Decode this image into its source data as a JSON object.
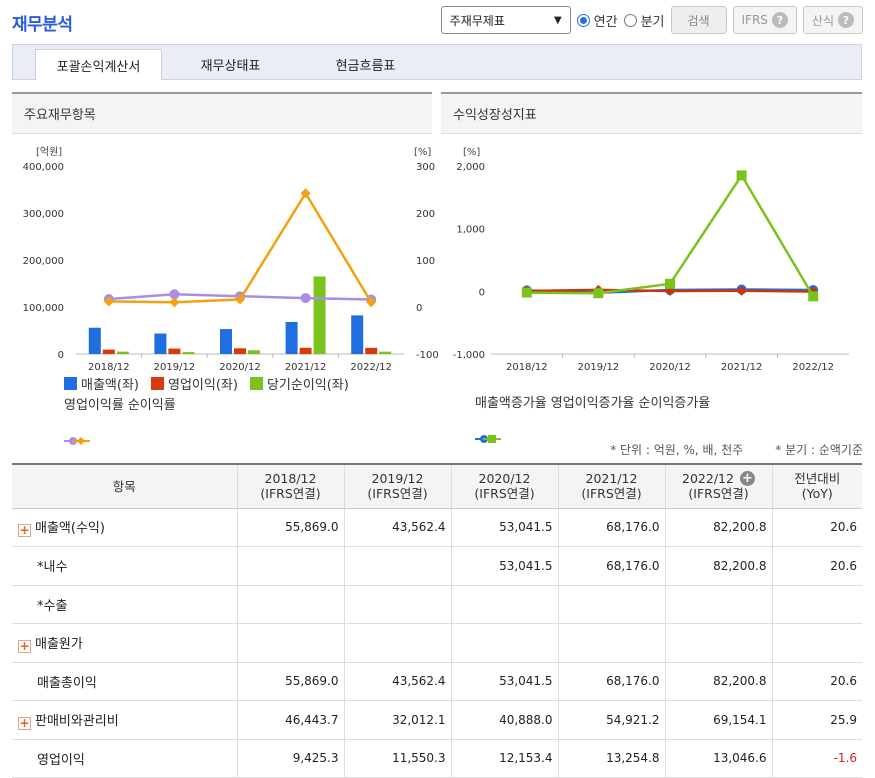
{
  "page_title": "재무분석",
  "toolbar": {
    "select_value": "주재무제표",
    "radio_annual": "연간",
    "radio_quarter": "분기",
    "search_label": "검색",
    "ifrs_label": "IFRS",
    "calc_label": "산식",
    "help_glyph": "?"
  },
  "tabs": [
    "포괄손익계산서",
    "재무상태표",
    "현금흐름표"
  ],
  "left_panel": {
    "title": "주요재무항목",
    "left_unit": "[억원]",
    "right_unit": "[%]",
    "legend": [
      "매출액(좌)",
      "영업이익(좌)",
      "당기순이익(좌)",
      "영업이익률",
      "순이익률"
    ]
  },
  "right_panel": {
    "title": "수익성장성지표",
    "unit": "[%]",
    "legend": [
      "매출액증가율",
      "영업이익증가율",
      "순이익증가율"
    ]
  },
  "colors": {
    "revenue": "#1f6fe0",
    "op_income": "#d83a0a",
    "net_income": "#7cc21c",
    "op_margin": "#a98ee6",
    "net_margin": "#f5a00f",
    "rev_growth": "#1f6fe0",
    "op_growth": "#c9360b",
    "net_growth": "#7cc21c"
  },
  "chart_data": [
    {
      "type": "bar",
      "categories": [
        "2018/12",
        "2019/12",
        "2020/12",
        "2021/12",
        "2022/12"
      ],
      "y_left_ticks": [
        "400,000",
        "300,000",
        "200,000",
        "100,000",
        "0"
      ],
      "y_right_ticks": [
        "300",
        "200",
        "100",
        "0",
        "-100"
      ],
      "ylim_left": [
        0,
        400000
      ],
      "ylim_right": [
        -100,
        300
      ],
      "series": [
        {
          "name": "매출액(좌)",
          "axis": "left",
          "kind": "bar",
          "values": [
            55869,
            43562,
            53042,
            68176,
            82201
          ]
        },
        {
          "name": "영업이익(좌)",
          "axis": "left",
          "kind": "bar",
          "values": [
            9425,
            11550,
            12153,
            13255,
            13047
          ]
        },
        {
          "name": "당기순이익(좌)",
          "axis": "left",
          "kind": "bar",
          "values": [
            5000,
            4000,
            8000,
            165000,
            5000
          ]
        },
        {
          "name": "영업이익률",
          "axis": "right",
          "kind": "line",
          "values": [
            17,
            27,
            23,
            19,
            16
          ]
        },
        {
          "name": "순이익률",
          "axis": "right",
          "kind": "line",
          "values": [
            12,
            10,
            16,
            242,
            10
          ]
        }
      ]
    },
    {
      "type": "line",
      "categories": [
        "2018/12",
        "2019/12",
        "2020/12",
        "2021/12",
        "2022/12"
      ],
      "y_ticks": [
        "2,000",
        "1,000",
        "0",
        "-1,000"
      ],
      "ylim": [
        -1000,
        2000
      ],
      "series": [
        {
          "name": "매출액증가율",
          "values": [
            15,
            -22,
            22,
            29,
            21
          ]
        },
        {
          "name": "영업이익증가율",
          "values": [
            5,
            23,
            5,
            9,
            -2
          ]
        },
        {
          "name": "순이익증가율",
          "values": [
            -20,
            -30,
            120,
            1850,
            -80
          ]
        }
      ]
    }
  ],
  "notes": [
    "* 단위 : 억원, %, 배, 천주",
    "* 분기 : 순액기준"
  ],
  "table": {
    "headers": [
      {
        "l1": "항목",
        "l2": ""
      },
      {
        "l1": "2018/12",
        "l2": "(IFRS연결)"
      },
      {
        "l1": "2019/12",
        "l2": "(IFRS연결)"
      },
      {
        "l1": "2020/12",
        "l2": "(IFRS연결)"
      },
      {
        "l1": "2021/12",
        "l2": "(IFRS연결)"
      },
      {
        "l1": "2022/12",
        "l2": "(IFRS연결)"
      },
      {
        "l1": "전년대비",
        "l2": "(YoY)"
      }
    ],
    "rows": [
      {
        "label": "매출액(수익)",
        "expand": true,
        "indent": false,
        "cells": [
          "55,869.0",
          "43,562.4",
          "53,041.5",
          "68,176.0",
          "82,200.8",
          "20.6"
        ]
      },
      {
        "label": "*내수",
        "expand": false,
        "indent": true,
        "cells": [
          "",
          "",
          "53,041.5",
          "68,176.0",
          "82,200.8",
          "20.6"
        ]
      },
      {
        "label": "*수출",
        "expand": false,
        "indent": true,
        "cells": [
          "",
          "",
          "",
          "",
          "",
          ""
        ]
      },
      {
        "label": "매출원가",
        "expand": true,
        "indent": false,
        "cells": [
          "",
          "",
          "",
          "",
          "",
          ""
        ]
      },
      {
        "label": "매출총이익",
        "expand": false,
        "indent": true,
        "cells": [
          "55,869.0",
          "43,562.4",
          "53,041.5",
          "68,176.0",
          "82,200.8",
          "20.6"
        ]
      },
      {
        "label": "판매비와관리비",
        "expand": true,
        "indent": false,
        "cells": [
          "46,443.7",
          "32,012.1",
          "40,888.0",
          "54,921.2",
          "69,154.1",
          "25.9"
        ]
      },
      {
        "label": "영업이익",
        "expand": false,
        "indent": true,
        "cells": [
          "9,425.3",
          "11,550.3",
          "12,153.4",
          "13,254.8",
          "13,046.6",
          "-1.6"
        ]
      }
    ]
  }
}
